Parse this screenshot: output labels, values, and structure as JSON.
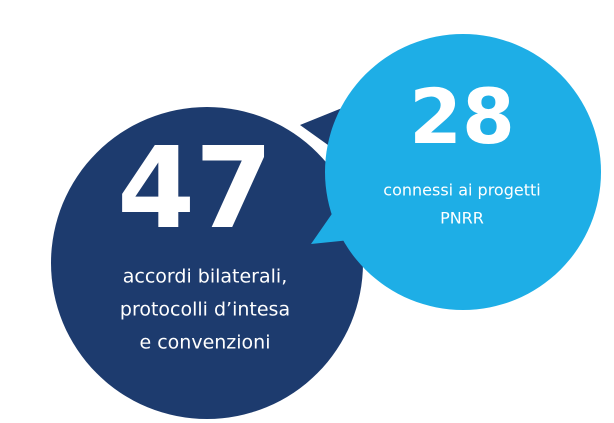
{
  "stats": [
    {
      "number": "47",
      "label_lines": [
        "accordi bilaterali,",
        "protocolli d’intesa",
        "e convenzioni"
      ]
    },
    {
      "number": "28",
      "label_lines": [
        "connessi ai progetti",
        "PNRR"
      ]
    }
  ]
}
